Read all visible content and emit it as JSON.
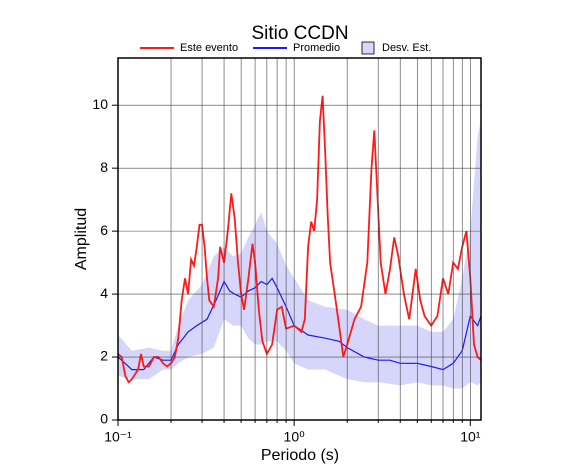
{
  "chart_data": {
    "type": "line",
    "title": "Sitio CCDN",
    "xlabel": "Periodo (s)",
    "ylabel": "Amplitud",
    "xscale": "log",
    "grid": true,
    "xlim": [
      0.1,
      11.5
    ],
    "ylim": [
      0,
      11.5
    ],
    "xticks": [
      {
        "value": 0.1,
        "label": "10⁻¹"
      },
      {
        "value": 1,
        "label": "10⁰"
      },
      {
        "value": 10,
        "label": "10¹"
      }
    ],
    "xminorticks": [
      0.2,
      0.3,
      0.4,
      0.5,
      0.6,
      0.7,
      0.8,
      0.9,
      2,
      3,
      4,
      5,
      6,
      7,
      8,
      9
    ],
    "yticks": [
      0,
      2,
      4,
      6,
      8,
      10
    ],
    "series": [
      {
        "name": "Desv. Est.",
        "kind": "band",
        "color": "#d6d6fa",
        "x": [
          0.1,
          0.12,
          0.15,
          0.18,
          0.2,
          0.22,
          0.25,
          0.3,
          0.35,
          0.4,
          0.45,
          0.5,
          0.55,
          0.6,
          0.65,
          0.7,
          0.8,
          0.9,
          1.0,
          1.2,
          1.5,
          2.0,
          2.5,
          3,
          4,
          5,
          6,
          7,
          8,
          9,
          10,
          11,
          11.5
        ],
        "upper": [
          2.7,
          2.2,
          2.3,
          2.2,
          2.2,
          3.0,
          3.8,
          4.3,
          5.2,
          5.5,
          5.2,
          5.3,
          5.8,
          6.2,
          6.6,
          6.0,
          5.6,
          4.9,
          4.5,
          3.8,
          3.6,
          3.5,
          3.2,
          3.0,
          3.0,
          3.0,
          2.8,
          2.8,
          3.2,
          4.5,
          6.0,
          9.0,
          9.6
        ],
        "lower": [
          1.4,
          1.3,
          1.3,
          1.6,
          1.6,
          1.8,
          2.0,
          2.1,
          2.3,
          3.2,
          3.0,
          3.0,
          2.6,
          2.4,
          2.4,
          2.5,
          2.5,
          2.2,
          1.8,
          1.6,
          1.6,
          1.3,
          1.2,
          1.2,
          1.1,
          1.2,
          1.1,
          1.1,
          1.0,
          1.0,
          1.2,
          1.1,
          1.2
        ]
      },
      {
        "name": "Promedio",
        "kind": "line",
        "color": "#1a1aff",
        "x": [
          0.1,
          0.12,
          0.14,
          0.16,
          0.18,
          0.2,
          0.22,
          0.25,
          0.28,
          0.32,
          0.36,
          0.4,
          0.43,
          0.46,
          0.5,
          0.55,
          0.6,
          0.65,
          0.7,
          0.75,
          0.8,
          0.9,
          1.0,
          1.2,
          1.5,
          1.8,
          2.0,
          2.5,
          3.0,
          3.5,
          4.0,
          5.0,
          6.0,
          7.0,
          8.0,
          9.0,
          10.0,
          11.0,
          11.5
        ],
        "values": [
          2.0,
          1.6,
          1.6,
          2.0,
          1.9,
          1.9,
          2.4,
          2.8,
          3.0,
          3.2,
          3.8,
          4.4,
          4.1,
          4.0,
          3.9,
          4.1,
          4.2,
          4.4,
          4.3,
          4.5,
          4.2,
          3.6,
          3.0,
          2.7,
          2.6,
          2.5,
          2.3,
          2.0,
          1.9,
          1.9,
          1.8,
          1.8,
          1.7,
          1.6,
          1.8,
          2.2,
          3.3,
          3.0,
          3.3
        ]
      },
      {
        "name": "Este evento",
        "kind": "line",
        "color": "#ff1a1a",
        "x": [
          0.1,
          0.105,
          0.11,
          0.115,
          0.12,
          0.13,
          0.135,
          0.14,
          0.15,
          0.16,
          0.17,
          0.18,
          0.19,
          0.2,
          0.21,
          0.22,
          0.23,
          0.24,
          0.25,
          0.26,
          0.27,
          0.28,
          0.29,
          0.3,
          0.31,
          0.32,
          0.33,
          0.35,
          0.37,
          0.38,
          0.4,
          0.42,
          0.44,
          0.46,
          0.48,
          0.5,
          0.52,
          0.55,
          0.58,
          0.6,
          0.63,
          0.66,
          0.7,
          0.75,
          0.8,
          0.85,
          0.9,
          1.0,
          1.1,
          1.15,
          1.2,
          1.25,
          1.3,
          1.35,
          1.4,
          1.45,
          1.5,
          1.55,
          1.6,
          1.7,
          1.8,
          1.9,
          2.0,
          2.2,
          2.4,
          2.6,
          2.75,
          2.85,
          2.95,
          3.1,
          3.3,
          3.5,
          3.7,
          3.9,
          4.2,
          4.5,
          4.7,
          4.9,
          5.2,
          5.5,
          6.0,
          6.5,
          7.0,
          7.5,
          8.0,
          8.5,
          9.0,
          9.5,
          10.0,
          10.5,
          11.0,
          11.5
        ],
        "values": [
          2.1,
          2.0,
          1.4,
          1.2,
          1.3,
          1.6,
          2.1,
          1.7,
          1.7,
          2.0,
          2.0,
          1.8,
          1.7,
          1.8,
          2.0,
          2.6,
          3.8,
          4.5,
          4.0,
          5.1,
          4.9,
          5.5,
          6.2,
          6.2,
          5.5,
          4.5,
          3.8,
          3.6,
          4.5,
          5.5,
          5.0,
          6.0,
          7.2,
          6.4,
          5.0,
          4.0,
          3.5,
          4.5,
          5.6,
          5.0,
          3.5,
          2.5,
          2.1,
          2.4,
          3.5,
          3.6,
          2.9,
          3.0,
          2.8,
          3.2,
          5.5,
          6.3,
          6.0,
          7.0,
          9.5,
          10.3,
          8.5,
          6.5,
          5.0,
          4.0,
          3.0,
          2.0,
          2.4,
          3.2,
          3.6,
          5.0,
          8.0,
          9.2,
          7.5,
          5.0,
          4.0,
          4.8,
          5.8,
          5.2,
          4.0,
          3.2,
          4.0,
          4.8,
          3.8,
          3.3,
          3.0,
          3.3,
          4.5,
          4.0,
          5.0,
          4.8,
          5.5,
          6.0,
          4.5,
          2.4,
          2.0,
          1.9
        ]
      }
    ],
    "legend_order": [
      2,
      1,
      0
    ]
  }
}
